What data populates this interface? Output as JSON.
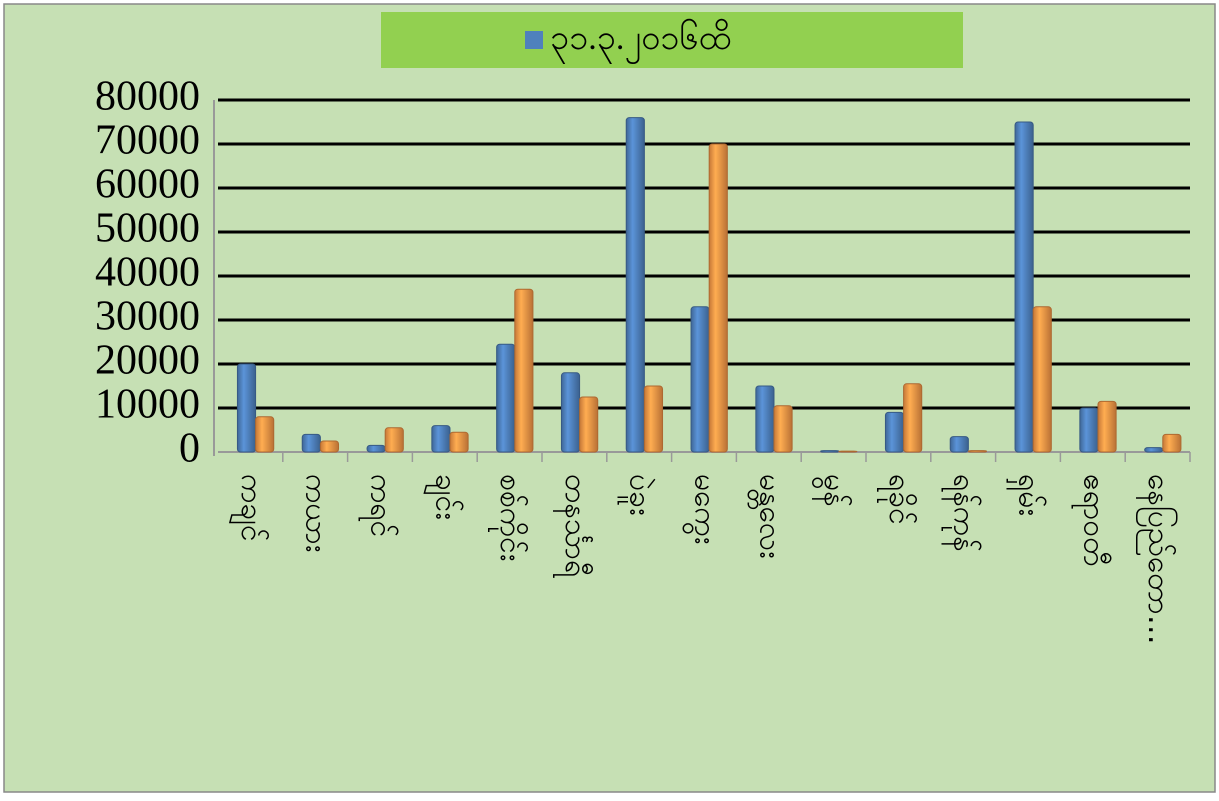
{
  "chart_data": {
    "type": "bar",
    "categories": [
      "ကချင်",
      "ကယား",
      "ကရင်",
      "ချင်း",
      "စစ်ကိုင်း",
      "တနင်္သာရီ",
      "ပဲခူး",
      "မကွေး",
      "မန္တလေး",
      "မွန်",
      "ရခိုင်",
      "ရန်ကုန်",
      "ရှမ်း",
      "ဧရာဝတီ",
      "နေပြည်တော…"
    ],
    "series": [
      {
        "name": "၃၁.၃.၂၀၁၆ထိ",
        "color": "#4f81bd",
        "values": [
          20000,
          4000,
          1500,
          6000,
          24500,
          18000,
          76000,
          33000,
          15000,
          300,
          9000,
          3500,
          75000,
          10000,
          1000
        ]
      },
      {
        "color": "#f79646",
        "values": [
          8000,
          2500,
          5500,
          4500,
          37000,
          12500,
          15000,
          70000,
          10500,
          200,
          15500,
          300,
          33000,
          11500,
          4000
        ]
      }
    ],
    "ylim": [
      0,
      80000
    ],
    "yticks": [
      0,
      10000,
      20000,
      30000,
      40000,
      50000,
      60000,
      70000,
      80000
    ],
    "grid": true
  }
}
